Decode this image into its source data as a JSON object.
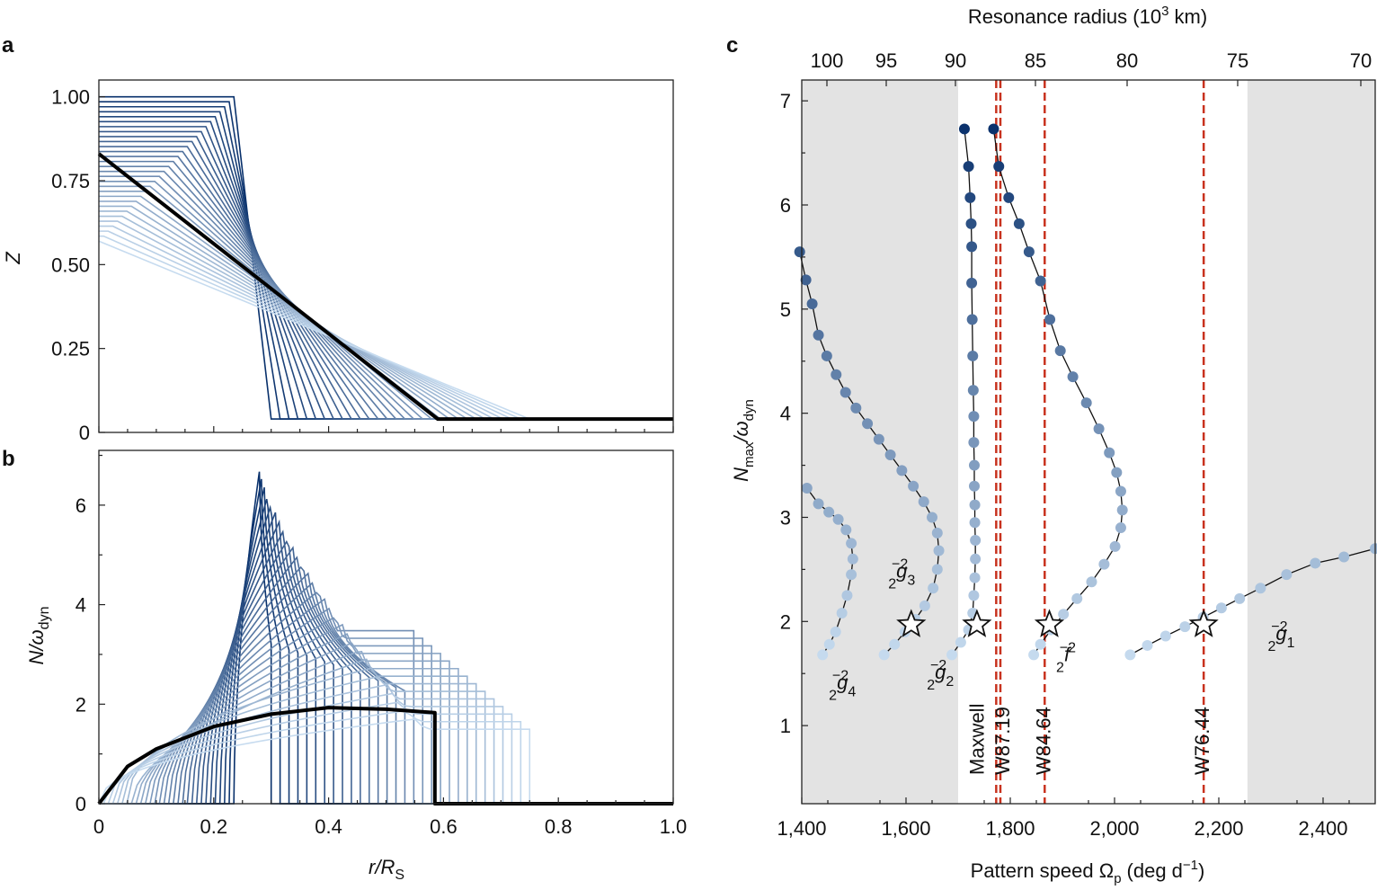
{
  "panels": [
    {
      "letter": "a",
      "chart_data": {
        "type": "line",
        "xlabel": "",
        "ylabel": "Z",
        "xlim": [
          0,
          1
        ],
        "ylim": [
          0,
          1.05
        ],
        "x_ticks": [
          "0",
          "0.2",
          "0.4",
          "0.6",
          "0.8",
          "1.0"
        ],
        "y_ticks": [
          "0",
          "0.25",
          "0.50",
          "0.75",
          "1.00"
        ],
        "family": {
          "count": 30,
          "colormap": [
            "#08306b",
            "#c6dbef"
          ],
          "top_edge_start": [
            0.235,
            0.0
          ],
          "top_edge_end": [
            0.0,
            1.0
          ],
          "bottom_edge_start": [
            0.3,
            0.04
          ],
          "bottom_edge_end": [
            0.75,
            0.04
          ],
          "z_top_start": 1.0,
          "z_top_end": 0.57,
          "z_bottom": 0.04
        },
        "highlighted_series": {
          "name": "",
          "color": "#000000",
          "x": [
            0,
            0.59,
            1.0
          ],
          "y": [
            0.83,
            0.04,
            0.04
          ]
        }
      }
    },
    {
      "letter": "b",
      "chart_data": {
        "type": "line",
        "xlabel": "r/R",
        "xlabel_sub": "S",
        "ylabel": "N/ω",
        "ylabel_sub": "dyn",
        "xlim": [
          0,
          1
        ],
        "ylim": [
          0,
          7.1
        ],
        "x_ticks": [
          "0",
          "0.2",
          "0.4",
          "0.6",
          "0.8",
          "1.0"
        ],
        "y_ticks": [
          "0",
          "2",
          "4",
          "6"
        ],
        "family": {
          "count": 30,
          "colormap": [
            "#08306b",
            "#c6dbef"
          ],
          "peak_start": 6.72,
          "peak_end": 1.7,
          "r_inner_start": 0.235,
          "r_inner_end": 0.0,
          "r_outer_start": 0.3,
          "r_outer_end": 0.75
        },
        "highlighted_series": {
          "name": "",
          "color": "#000000",
          "x": [
            0,
            0.05,
            0.1,
            0.2,
            0.3,
            0.4,
            0.5,
            0.585,
            0.585,
            1.0
          ],
          "y": [
            0,
            0.75,
            1.1,
            1.55,
            1.8,
            1.93,
            1.9,
            1.83,
            0,
            0
          ]
        }
      }
    },
    {
      "letter": "c",
      "chart_data": {
        "type": "scatter",
        "xlabel": "Pattern speed Ω",
        "xlabel_sub": "p",
        "xlabel_unit": "(deg d",
        "xlabel_unit_sup": "−1",
        "xlabel_unit_end": ")",
        "ylabel": "N",
        "ylabel_sub": "max",
        "ylabel_rest": "/ω",
        "ylabel_sub2": "dyn",
        "top_xlabel": "Resonance radius (10",
        "top_xlabel_sup": "3",
        "top_xlabel_end": " km)",
        "xlim": [
          1400,
          2500
        ],
        "ylim": [
          0.25,
          7.2
        ],
        "x_ticks": [
          "1,400",
          "1,600",
          "1,800",
          "2,000",
          "2,200",
          "2,400"
        ],
        "x_tick_values": [
          1400,
          1600,
          1800,
          2000,
          2200,
          2400
        ],
        "y_ticks": [
          "1",
          "2",
          "3",
          "4",
          "5",
          "6",
          "7"
        ],
        "top_ticks": [
          "100",
          "95",
          "90",
          "85",
          "80",
          "75",
          "70"
        ],
        "shaded_x_ranges": [
          [
            1400,
            1700
          ],
          [
            2255,
            2500
          ]
        ],
        "shade_color": "#e3e3e3",
        "vlines": [
          {
            "x": 1773,
            "label": "Maxwell"
          },
          {
            "x": 1781,
            "label": "W87.19"
          },
          {
            "x": 1866,
            "label": "W84.64"
          },
          {
            "x": 2171,
            "label": "W76.44"
          }
        ],
        "vline_color": "#c8321e",
        "colormap": [
          "#08306b",
          "#c6dbef"
        ],
        "series": [
          {
            "name": "g4",
            "points": [
              [
                1440,
                1.68
              ],
              [
                1453,
                1.78
              ],
              [
                1465,
                1.9
              ],
              [
                1477,
                2.08
              ],
              [
                1487,
                2.25
              ],
              [
                1495,
                2.45
              ],
              [
                1498,
                2.6
              ],
              [
                1495,
                2.75
              ],
              [
                1485,
                2.88
              ],
              [
                1470,
                2.98
              ],
              [
                1452,
                3.05
              ],
              [
                1432,
                3.13
              ],
              [
                1410,
                3.28
              ]
            ]
          },
          {
            "name": "g3",
            "points": [
              [
                1558,
                1.68
              ],
              [
                1578,
                1.78
              ],
              [
                1598,
                1.9
              ],
              [
                1618,
                2.02
              ],
              [
                1636,
                2.15
              ],
              [
                1652,
                2.32
              ],
              [
                1660,
                2.5
              ],
              [
                1663,
                2.68
              ],
              [
                1660,
                2.85
              ],
              [
                1650,
                3.0
              ],
              [
                1634,
                3.15
              ],
              [
                1614,
                3.3
              ],
              [
                1592,
                3.45
              ],
              [
                1570,
                3.6
              ],
              [
                1548,
                3.75
              ],
              [
                1526,
                3.9
              ],
              [
                1504,
                4.05
              ],
              [
                1484,
                4.2
              ],
              [
                1466,
                4.37
              ],
              [
                1448,
                4.55
              ],
              [
                1432,
                4.75
              ],
              [
                1420,
                5.05
              ],
              [
                1408,
                5.28
              ],
              [
                1396,
                5.55
              ]
            ]
          },
          {
            "name": "g2",
            "points": [
              [
                1688,
                1.68
              ],
              [
                1705,
                1.8
              ],
              [
                1720,
                1.92
              ],
              [
                1728,
                2.08
              ],
              [
                1730,
                2.25
              ],
              [
                1732,
                2.42
              ],
              [
                1733,
                2.6
              ],
              [
                1733,
                2.78
              ],
              [
                1732,
                2.95
              ],
              [
                1732,
                3.12
              ],
              [
                1731,
                3.3
              ],
              [
                1731,
                3.5
              ],
              [
                1730,
                3.72
              ],
              [
                1730,
                3.97
              ],
              [
                1729,
                4.22
              ],
              [
                1728,
                4.55
              ],
              [
                1727,
                4.9
              ],
              [
                1726,
                5.25
              ],
              [
                1726,
                5.6
              ],
              [
                1725,
                5.82
              ],
              [
                1723,
                6.07
              ],
              [
                1720,
                6.37
              ],
              [
                1712,
                6.73
              ]
            ]
          },
          {
            "name": "f",
            "points": [
              [
                1845,
                1.68
              ],
              [
                1858,
                1.78
              ],
              [
                1878,
                1.92
              ],
              [
                1902,
                2.07
              ],
              [
                1928,
                2.22
              ],
              [
                1956,
                2.38
              ],
              [
                1980,
                2.55
              ],
              [
                2001,
                2.72
              ],
              [
                2012,
                2.9
              ],
              [
                2015,
                3.07
              ],
              [
                2012,
                3.25
              ],
              [
                2004,
                3.43
              ],
              [
                1990,
                3.62
              ],
              [
                1970,
                3.85
              ],
              [
                1946,
                4.1
              ],
              [
                1920,
                4.35
              ],
              [
                1896,
                4.6
              ],
              [
                1876,
                4.9
              ],
              [
                1858,
                5.27
              ],
              [
                1836,
                5.55
              ],
              [
                1817,
                5.82
              ],
              [
                1797,
                6.07
              ],
              [
                1778,
                6.37
              ],
              [
                1768,
                6.73
              ]
            ]
          },
          {
            "name": "g1",
            "points": [
              [
                2030,
                1.68
              ],
              [
                2063,
                1.77
              ],
              [
                2098,
                1.86
              ],
              [
                2135,
                1.95
              ],
              [
                2170,
                2.04
              ],
              [
                2205,
                2.13
              ],
              [
                2240,
                2.22
              ],
              [
                2280,
                2.32
              ],
              [
                2330,
                2.45
              ],
              [
                2385,
                2.56
              ],
              [
                2440,
                2.62
              ],
              [
                2500,
                2.7
              ]
            ]
          }
        ],
        "stars": [
          {
            "x": 1610,
            "y": 1.97
          },
          {
            "x": 1736,
            "y": 1.97
          },
          {
            "x": 1875,
            "y": 1.97
          },
          {
            "x": 2171,
            "y": 1.97
          }
        ],
        "mode_labels": [
          {
            "name": "g4",
            "pre": "−2",
            "sub": "2",
            "main": "g",
            "post": "4"
          },
          {
            "name": "g3",
            "pre": "−2",
            "sub": "2",
            "main": "g",
            "post": "3"
          },
          {
            "name": "g2",
            "pre": "−2",
            "sub": "2",
            "main": "g",
            "post": "2"
          },
          {
            "name": "f",
            "pre": "−2",
            "sub": "2",
            "main": "f",
            "post": ""
          },
          {
            "name": "g1",
            "pre": "−2",
            "sub": "2",
            "main": "g",
            "post": "1"
          }
        ]
      }
    }
  ]
}
